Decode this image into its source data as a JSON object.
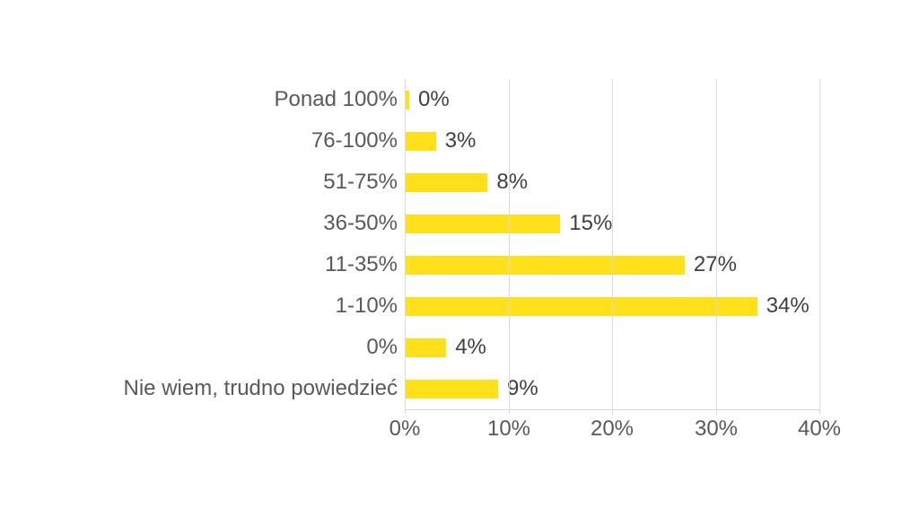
{
  "page": {
    "background": "#ffffff"
  },
  "chart_data": {
    "type": "bar",
    "orientation": "horizontal",
    "title": "",
    "categories": [
      "Ponad 100%",
      "76-100%",
      "51-75%",
      "36-50%",
      "11-35%",
      "1-10%",
      "0%",
      "Nie wiem, trudno powiedzieć"
    ],
    "values": [
      0,
      3,
      8,
      15,
      27,
      34,
      4,
      9
    ],
    "value_labels": [
      "0%",
      "3%",
      "8%",
      "15%",
      "27%",
      "34%",
      "4%",
      "9%"
    ],
    "x_axis": {
      "min": 0,
      "max": 40,
      "tick_values": [
        0,
        10,
        20,
        30,
        40
      ],
      "tick_labels": [
        "0%",
        "10%",
        "20%",
        "30%",
        "40%"
      ]
    },
    "grid": true,
    "legend": false,
    "colors": {
      "bar": "#FFE01A",
      "gridline": "#D9D9D9",
      "axis_line": "#D9D9D9",
      "category_label": "#595959",
      "value_label": "#404040",
      "tick_label": "#595959"
    }
  }
}
